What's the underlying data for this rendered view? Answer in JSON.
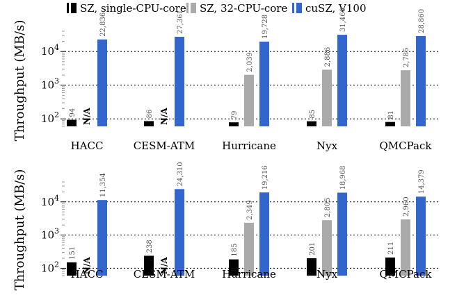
{
  "colors": {
    "sz_single": "#000000",
    "sz_32": "#aaaaaa",
    "cusz": "#3366cc"
  },
  "legend": [
    {
      "label": "SZ, single-CPU-core",
      "color": "#000000"
    },
    {
      "label": "SZ, 32-CPU-core",
      "color": "#aaaaaa"
    },
    {
      "label": "cuSZ, V100",
      "color": "#3366cc"
    }
  ],
  "chart_data": [
    {
      "type": "bar",
      "scale": "log",
      "ylabel": "Throughput (MB/s)",
      "ylim": [
        60,
        40000
      ],
      "yticks": [
        100,
        1000,
        10000
      ],
      "categories": [
        "HACC",
        "CESM-ATM",
        "Hurricane",
        "Nyx",
        "QMCPack"
      ],
      "series": [
        {
          "name": "SZ, single-CPU-core",
          "values": [
            94,
            86,
            79,
            85,
            81
          ],
          "labels": [
            "94",
            "86",
            "79",
            "85",
            "81"
          ]
        },
        {
          "name": "SZ, 32-CPU-core",
          "values": [
            null,
            null,
            2039,
            2886,
            2785
          ],
          "labels": [
            "N/A",
            "N/A",
            "2,039",
            "2,886",
            "2,785"
          ]
        },
        {
          "name": "cuSZ, V100",
          "values": [
            22836,
            27361,
            19728,
            31460,
            28860
          ],
          "labels": [
            "22,836",
            "27,361",
            "19,728",
            "31,460",
            "28,860"
          ]
        }
      ]
    },
    {
      "type": "bar",
      "scale": "log",
      "ylabel": "Throughput (MB/s)",
      "ylim": [
        60,
        40000
      ],
      "yticks": [
        100,
        1000,
        10000
      ],
      "categories": [
        "HACC",
        "CESM-ATM",
        "Hurricane",
        "Nyx",
        "QMCPack"
      ],
      "series": [
        {
          "name": "SZ, single-CPU-core",
          "values": [
            151,
            238,
            185,
            201,
            211
          ],
          "labels": [
            "151",
            "238",
            "185",
            "201",
            "211"
          ]
        },
        {
          "name": "SZ, 32-CPU-core",
          "values": [
            null,
            null,
            2349,
            2805,
            2960
          ],
          "labels": [
            "N/A",
            "N/A",
            "2,349",
            "2,805",
            "2,960"
          ]
        },
        {
          "name": "cuSZ, V100",
          "values": [
            11354,
            24310,
            19216,
            18968,
            14379
          ],
          "labels": [
            "11,354",
            "24,310",
            "19,216",
            "18,968",
            "14,379"
          ]
        }
      ]
    }
  ]
}
